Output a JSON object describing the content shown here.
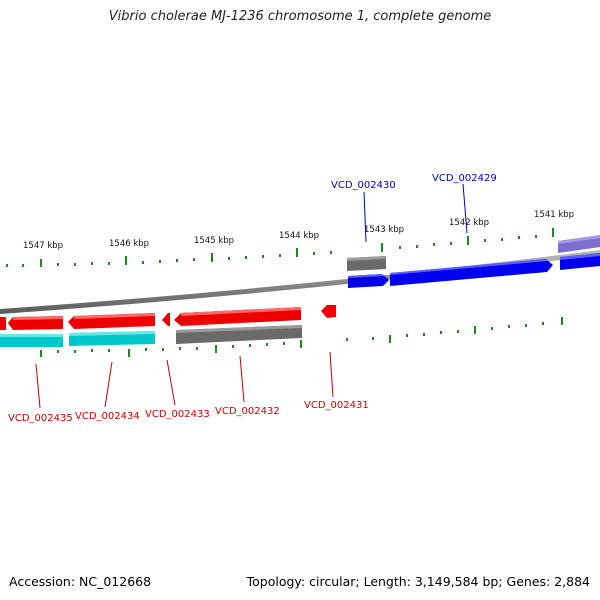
{
  "title": "Vibrio cholerae MJ-1236 chromosome 1, complete genome",
  "footer": {
    "accession": "Accession: NC_012668",
    "stats": "Topology: circular; Length: 3,149,584 bp; Genes: 2,884"
  },
  "scale_labels": [
    {
      "text": "1547 kbp",
      "kbp": 1547
    },
    {
      "text": "1546 kbp",
      "kbp": 1546
    },
    {
      "text": "1545 kbp",
      "kbp": 1545
    },
    {
      "text": "1544 kbp",
      "kbp": 1544
    },
    {
      "text": "1543 kbp",
      "kbp": 1543
    },
    {
      "text": "1542 kbp",
      "kbp": 1542
    },
    {
      "text": "1541 kbp",
      "kbp": 1541
    }
  ],
  "gene_labels": [
    {
      "text": "VCD_002430",
      "strand": "forward"
    },
    {
      "text": "VCD_002429",
      "strand": "forward"
    },
    {
      "text": "VCD_002435",
      "strand": "reverse"
    },
    {
      "text": "VCD_002434",
      "strand": "reverse"
    },
    {
      "text": "VCD_002433",
      "strand": "reverse"
    },
    {
      "text": "VCD_002432",
      "strand": "reverse"
    },
    {
      "text": "VCD_002431",
      "strand": "reverse"
    }
  ],
  "colors": {
    "forward_cds": "#0000ee",
    "reverse_cds": "#ee0000",
    "rna_teal": "#00c8c8",
    "gene_gray": "#666666",
    "purple_feature": "#7a6fcf",
    "backbone": "#808080",
    "scale_ticks": "#1a8a1a",
    "forward_label": "#0000bb",
    "reverse_label": "#cc0000"
  }
}
